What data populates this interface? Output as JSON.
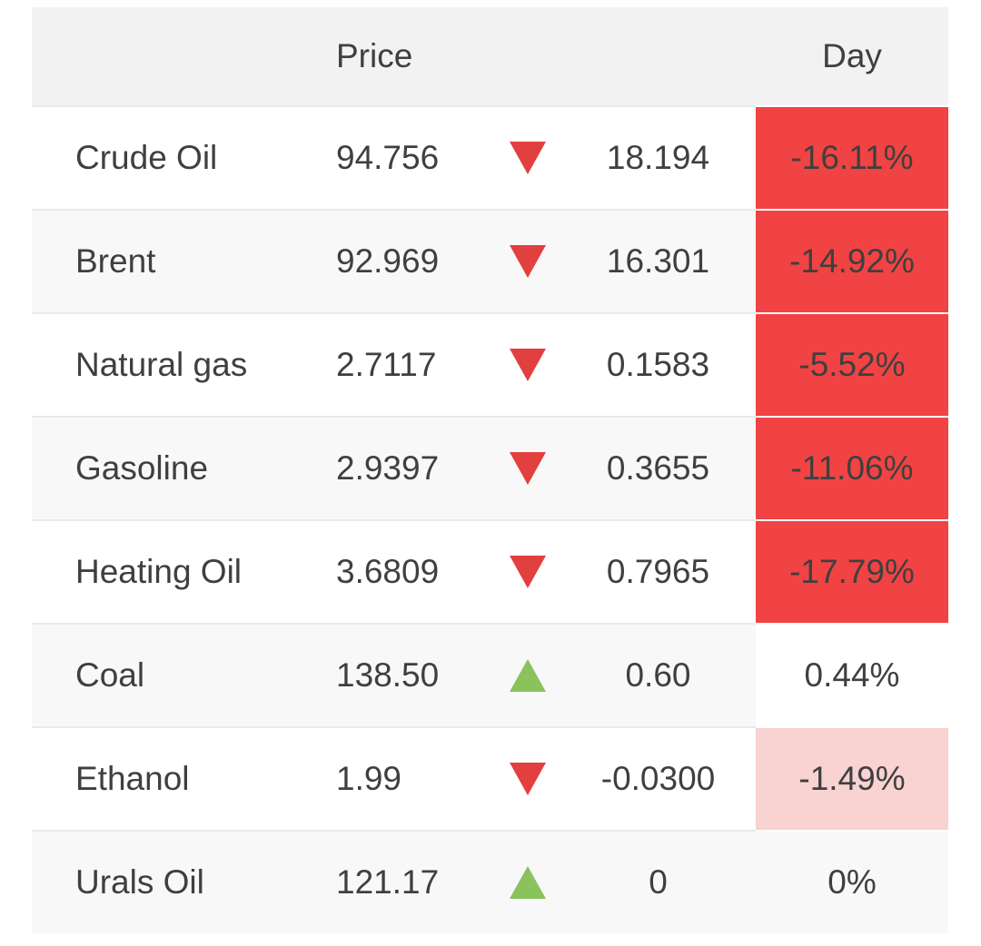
{
  "table": {
    "headers": {
      "price": "Price",
      "day": "Day"
    },
    "rows": [
      {
        "name": "Crude Oil",
        "price": "94.756",
        "direction": "down",
        "change": "18.194",
        "change_tone": "negative",
        "day": "-16.11%",
        "day_tone": "strong-negative"
      },
      {
        "name": "Brent",
        "price": "92.969",
        "direction": "down",
        "change": "16.301",
        "change_tone": "negative",
        "day": "-14.92%",
        "day_tone": "strong-negative"
      },
      {
        "name": "Natural gas",
        "price": "2.7117",
        "direction": "down",
        "change": "0.1583",
        "change_tone": "negative",
        "day": "-5.52%",
        "day_tone": "strong-negative"
      },
      {
        "name": "Gasoline",
        "price": "2.9397",
        "direction": "down",
        "change": "0.3655",
        "change_tone": "negative",
        "day": "-11.06%",
        "day_tone": "strong-negative"
      },
      {
        "name": "Heating Oil",
        "price": "3.6809",
        "direction": "down",
        "change": "0.7965",
        "change_tone": "negative",
        "day": "-17.79%",
        "day_tone": "strong-negative"
      },
      {
        "name": "Coal",
        "price": "138.50",
        "direction": "up",
        "change": "0.60",
        "change_tone": "neutral",
        "day": "0.44%",
        "day_tone": "positive-white"
      },
      {
        "name": "Ethanol",
        "price": "1.99",
        "direction": "down",
        "change": "-0.0300",
        "change_tone": "neutral",
        "day": "-1.49%",
        "day_tone": "mild-negative"
      },
      {
        "name": "Urals Oil",
        "price": "121.17",
        "direction": "up",
        "change": "0",
        "change_tone": "neutral",
        "day": "0%",
        "day_tone": "flat"
      }
    ]
  },
  "colors": {
    "header_bg": "#f2f2f2",
    "row_stripe": "#f8f8f8",
    "divider": "#e9e9e9",
    "text": "#3f3f3f",
    "negative_text": "#8e1111",
    "day_strong_negative_bg": "#f14343",
    "day_strong_negative_text": "#8c1a1a",
    "day_mild_negative_bg": "#f9d2d2",
    "triangle_down": "#e2403e",
    "triangle_up": "#8ac25c"
  }
}
